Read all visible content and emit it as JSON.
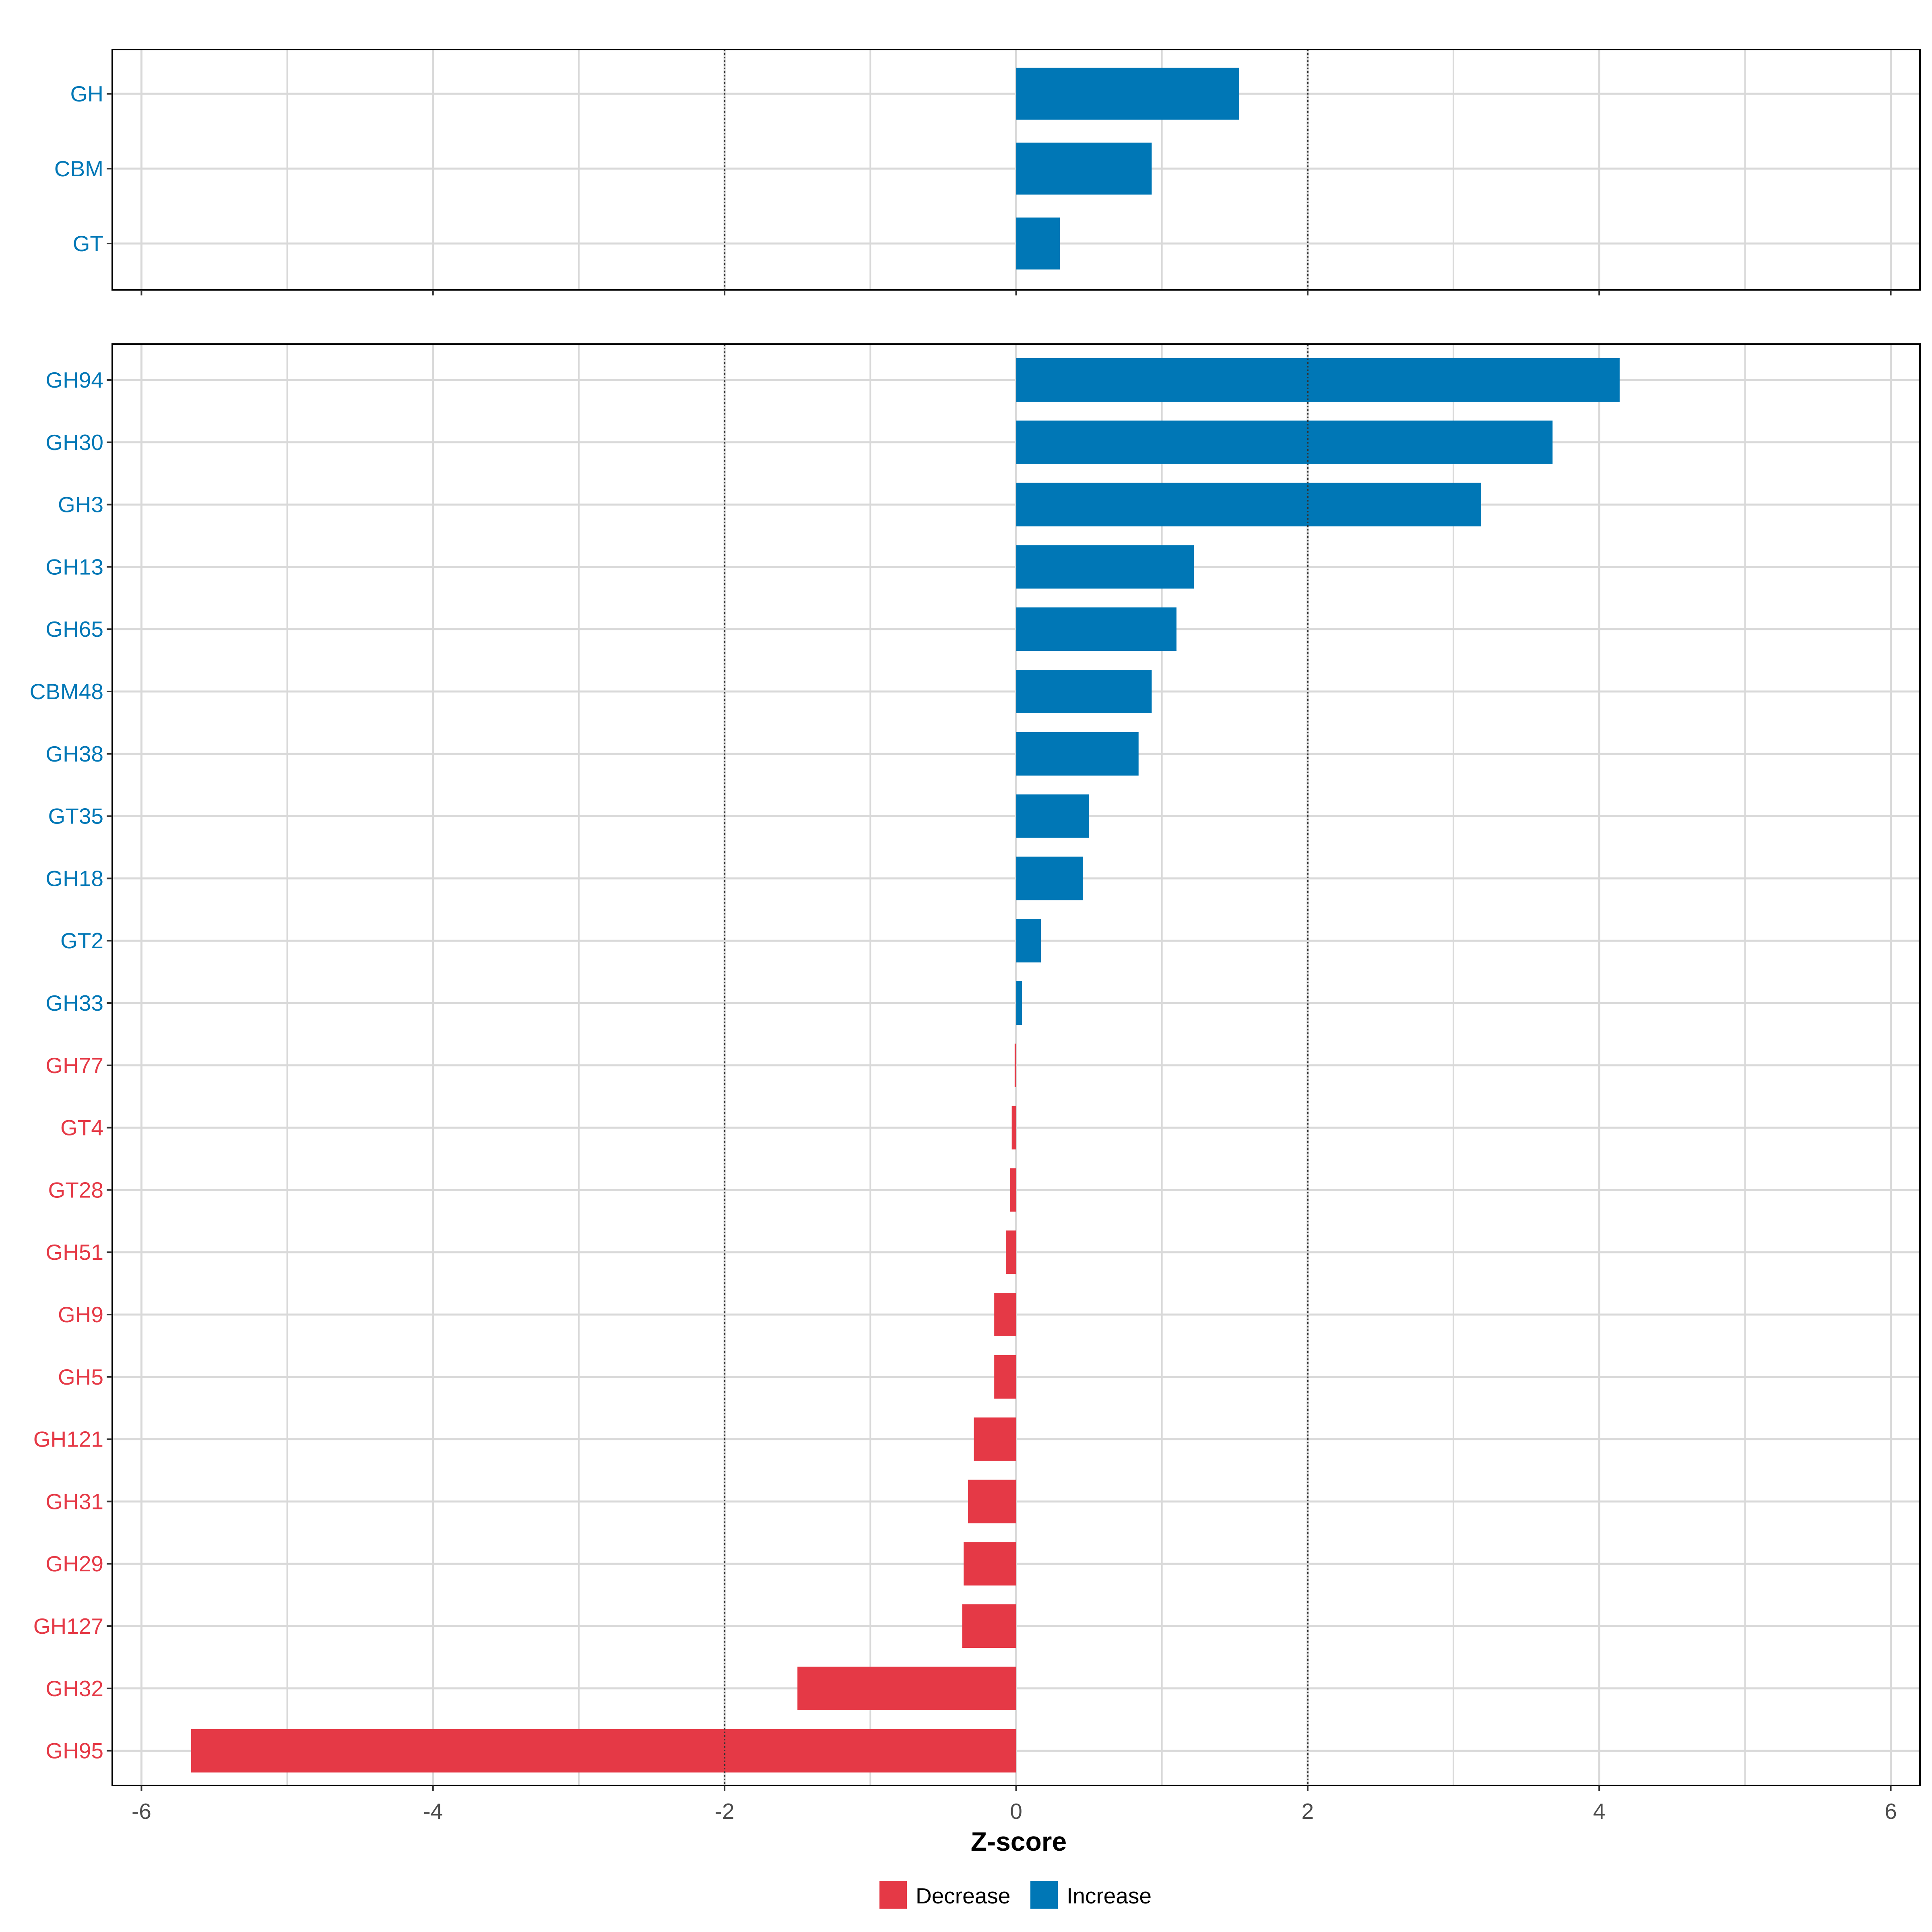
{
  "colors": {
    "increase": "#0077B6",
    "decrease": "#E53946",
    "grid": "#D9D9D9",
    "axis": "#333333",
    "text": "#000000"
  },
  "chart_data": [
    {
      "type": "bar",
      "orientation": "horizontal",
      "panel": "top",
      "categories": [
        "GH",
        "CBM",
        "GT"
      ],
      "values": [
        1.53,
        0.93,
        0.3
      ],
      "xlim": [
        -6.2,
        6.2
      ],
      "xticks": [
        -6,
        -4,
        -2,
        0,
        2,
        4,
        6
      ],
      "reference_lines": [
        -2,
        2
      ],
      "grid": true
    },
    {
      "type": "bar",
      "orientation": "horizontal",
      "panel": "bottom",
      "categories": [
        "GH94",
        "GH30",
        "GH3",
        "GH13",
        "GH65",
        "CBM48",
        "GH38",
        "GT35",
        "GH18",
        "GT2",
        "GH33",
        "GH77",
        "GT4",
        "GT28",
        "GH51",
        "GH9",
        "GH5",
        "GH121",
        "GH31",
        "GH29",
        "GH127",
        "GH32",
        "GH95"
      ],
      "values": [
        4.14,
        3.68,
        3.19,
        1.22,
        1.1,
        0.93,
        0.84,
        0.5,
        0.46,
        0.17,
        0.04,
        -0.01,
        -0.03,
        -0.04,
        -0.07,
        -0.15,
        -0.15,
        -0.29,
        -0.33,
        -0.36,
        -0.37,
        -1.5,
        -5.66
      ],
      "xlim": [
        -6.2,
        6.2
      ],
      "xticks": [
        -6,
        -4,
        -2,
        0,
        2,
        4,
        6
      ],
      "xtick_labels": [
        "-6",
        "-4",
        "-2",
        "0",
        "2",
        "4",
        "6"
      ],
      "reference_lines": [
        -2,
        2
      ],
      "xlabel": "Z-score",
      "grid": true
    }
  ],
  "legend": {
    "position": "bottom",
    "items": [
      {
        "label": "Decrease",
        "color": "#E53946"
      },
      {
        "label": "Increase",
        "color": "#0077B6"
      }
    ]
  }
}
